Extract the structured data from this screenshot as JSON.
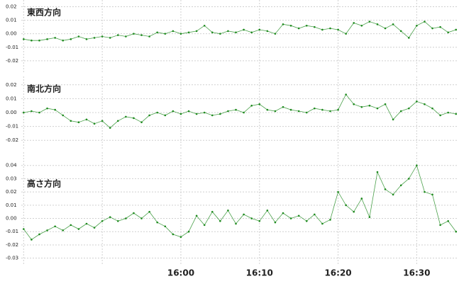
{
  "chart_data": [
    {
      "type": "line",
      "title": "東西方向",
      "color": "#1e8a1e",
      "x": [
        940,
        941,
        942,
        943,
        944,
        945,
        946,
        947,
        948,
        949,
        950,
        951,
        952,
        953,
        954,
        955,
        956,
        957,
        958,
        959,
        960,
        961,
        962,
        963,
        964,
        965,
        966,
        967,
        968,
        969,
        970,
        971,
        972,
        973,
        974,
        975,
        976,
        977,
        978,
        979,
        980,
        981,
        982,
        983,
        984,
        985,
        986,
        987,
        988,
        989,
        990,
        991,
        992,
        993,
        994,
        995
      ],
      "values": [
        -0.004,
        -0.005,
        -0.005,
        -0.004,
        -0.003,
        -0.005,
        -0.004,
        -0.002,
        -0.004,
        -0.003,
        -0.002,
        -0.003,
        -0.001,
        -0.002,
        0.0,
        -0.001,
        -0.002,
        0.001,
        0.0,
        0.002,
        0.0,
        0.001,
        0.002,
        0.006,
        0.001,
        0.0,
        0.002,
        0.001,
        0.003,
        0.001,
        0.003,
        0.002,
        0.0,
        0.007,
        0.006,
        0.004,
        0.006,
        0.005,
        0.003,
        0.004,
        0.003,
        0.0,
        0.008,
        0.006,
        0.009,
        0.007,
        0.004,
        0.007,
        0.002,
        -0.003,
        0.006,
        0.009,
        0.004,
        0.005,
        0.001,
        0.003
      ],
      "xlim": [
        939.7,
        995.2
      ],
      "ylim": [
        -0.029,
        0.025
      ],
      "yticks": [
        0.02,
        0.01,
        {
          "value": 0,
          "label": "0.00"
        },
        -0.01,
        -0.02
      ]
    },
    {
      "type": "line",
      "title": "南北方向",
      "color": "#1e8a1e",
      "x": [
        940,
        941,
        942,
        943,
        944,
        945,
        946,
        947,
        948,
        949,
        950,
        951,
        952,
        953,
        954,
        955,
        956,
        957,
        958,
        959,
        960,
        961,
        962,
        963,
        964,
        965,
        966,
        967,
        968,
        969,
        970,
        971,
        972,
        973,
        974,
        975,
        976,
        977,
        978,
        979,
        980,
        981,
        982,
        983,
        984,
        985,
        986,
        987,
        988,
        989,
        990,
        991,
        992,
        993,
        994,
        995
      ],
      "values": [
        0.0,
        0.001,
        0.0,
        0.003,
        0.002,
        -0.002,
        -0.006,
        -0.007,
        -0.005,
        -0.008,
        -0.006,
        -0.011,
        -0.006,
        -0.003,
        -0.004,
        -0.007,
        -0.002,
        0.0,
        -0.002,
        0.001,
        -0.001,
        0.001,
        -0.001,
        0.0,
        -0.002,
        -0.001,
        0.001,
        0.002,
        0.0,
        0.005,
        0.006,
        0.002,
        0.001,
        0.004,
        0.002,
        0.001,
        0.0,
        0.003,
        0.002,
        0.001,
        0.002,
        0.013,
        0.006,
        0.004,
        0.005,
        0.003,
        0.006,
        -0.005,
        0.001,
        0.003,
        0.008,
        0.006,
        0.003,
        -0.002,
        0.0,
        -0.001
      ],
      "xlim": [
        939.7,
        995.2
      ],
      "ylim": [
        -0.026,
        0.026
      ],
      "yticks": [
        0.02,
        0.01,
        {
          "value": 0,
          "label": "0.00"
        },
        -0.01,
        -0.02
      ]
    },
    {
      "type": "line",
      "title": "高さ方向",
      "color": "#1e8a1e",
      "x": [
        940,
        941,
        942,
        943,
        944,
        945,
        946,
        947,
        948,
        949,
        950,
        951,
        952,
        953,
        954,
        955,
        956,
        957,
        958,
        959,
        960,
        961,
        962,
        963,
        964,
        965,
        966,
        967,
        968,
        969,
        970,
        971,
        972,
        973,
        974,
        975,
        976,
        977,
        978,
        979,
        980,
        981,
        982,
        983,
        984,
        985,
        986,
        987,
        988,
        989,
        990,
        991,
        992,
        993,
        994,
        995
      ],
      "values": [
        -0.008,
        -0.016,
        -0.012,
        -0.009,
        -0.006,
        -0.009,
        -0.005,
        -0.008,
        -0.004,
        -0.007,
        -0.002,
        0.001,
        -0.002,
        0.0,
        0.004,
        0.0,
        0.005,
        -0.003,
        -0.006,
        -0.012,
        -0.014,
        -0.01,
        0.002,
        -0.005,
        0.005,
        -0.002,
        0.006,
        -0.004,
        0.003,
        0.0,
        -0.002,
        0.006,
        -0.003,
        0.004,
        0.0,
        0.002,
        -0.002,
        0.003,
        -0.004,
        -0.001,
        0.02,
        0.01,
        0.005,
        0.015,
        0.001,
        0.035,
        0.022,
        0.018,
        0.025,
        0.03,
        0.04,
        0.02,
        0.018,
        -0.005,
        -0.002,
        -0.01
      ],
      "xlim": [
        939.7,
        995.2
      ],
      "ylim": [
        -0.035,
        0.05
      ],
      "yticks": [
        0.04,
        0.03,
        0.02,
        0.01,
        {
          "value": 0,
          "label": "0.00"
        },
        -0.01,
        -0.02,
        -0.03
      ],
      "xticks": [
        {
          "value": 940,
          "label": null
        },
        {
          "value": 950,
          "label": null
        },
        {
          "value": 960,
          "label": "16:00"
        },
        {
          "value": 970,
          "label": "16:10"
        },
        {
          "value": 980,
          "label": "16:20"
        },
        {
          "value": 990,
          "label": "16:30"
        }
      ]
    }
  ]
}
